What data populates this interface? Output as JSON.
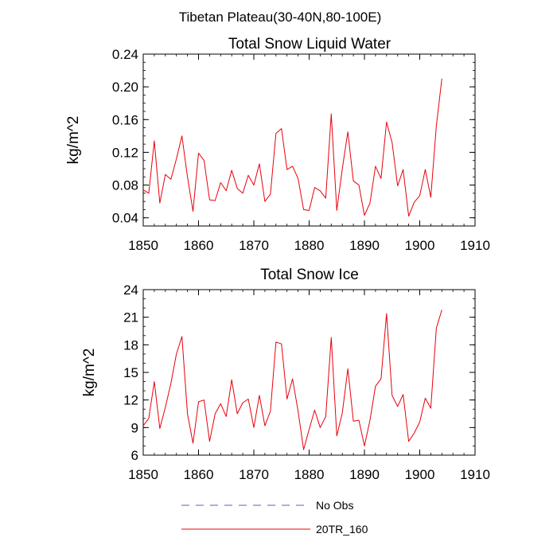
{
  "figure": {
    "suptitle": "Tibetan Plateau(30-40N,80-100E)"
  },
  "legend": {
    "entries": [
      {
        "label": "No Obs",
        "color": "#5a5ad6",
        "style": "dashed"
      },
      {
        "label": "20TR_160",
        "color": "#e8000b",
        "style": "solid"
      }
    ]
  },
  "chart_data": [
    {
      "type": "line",
      "title": "Total Snow Liquid Water",
      "xlabel": "",
      "ylabel": "kg/m^2",
      "xlim": [
        1850,
        1910
      ],
      "ylim": [
        0.03,
        0.24
      ],
      "xticks": [
        "1850",
        "1860",
        "1870",
        "1880",
        "1890",
        "1900",
        "1910"
      ],
      "yticks": [
        "0.04",
        "0.08",
        "0.12",
        "0.16",
        "0.20",
        "0.24"
      ],
      "x_start": 1850,
      "series": [
        {
          "name": "20TR_160",
          "color": "#e8000b",
          "values": [
            0.074,
            0.07,
            0.134,
            0.058,
            0.093,
            0.087,
            0.112,
            0.14,
            0.09,
            0.048,
            0.119,
            0.11,
            0.062,
            0.061,
            0.083,
            0.073,
            0.098,
            0.076,
            0.07,
            0.092,
            0.08,
            0.106,
            0.06,
            0.069,
            0.143,
            0.149,
            0.099,
            0.103,
            0.088,
            0.05,
            0.049,
            0.077,
            0.073,
            0.064,
            0.167,
            0.049,
            0.1,
            0.145,
            0.085,
            0.08,
            0.043,
            0.058,
            0.103,
            0.088,
            0.157,
            0.132,
            0.079,
            0.099,
            0.042,
            0.059,
            0.067,
            0.099,
            0.065,
            0.152,
            0.21
          ]
        }
      ]
    },
    {
      "type": "line",
      "title": "Total Snow Ice",
      "xlabel": "",
      "ylabel": "kg/m^2",
      "xlim": [
        1850,
        1910
      ],
      "ylim": [
        6,
        24
      ],
      "xticks": [
        "1850",
        "1860",
        "1870",
        "1880",
        "1890",
        "1900",
        "1910"
      ],
      "yticks": [
        "6",
        "9",
        "12",
        "15",
        "18",
        "21",
        "24"
      ],
      "x_start": 1850,
      "series": [
        {
          "name": "20TR_160",
          "color": "#e8000b",
          "values": [
            9.2,
            10.0,
            14.0,
            8.9,
            11.2,
            13.8,
            17.0,
            18.9,
            10.5,
            7.3,
            11.8,
            12.0,
            7.5,
            10.5,
            11.6,
            10.2,
            14.2,
            10.5,
            11.7,
            12.1,
            9.0,
            12.5,
            9.2,
            10.8,
            18.3,
            18.1,
            12.1,
            14.3,
            10.8,
            6.6,
            8.8,
            10.9,
            9.0,
            10.2,
            18.8,
            8.1,
            10.6,
            15.4,
            9.7,
            9.8,
            7.0,
            9.8,
            13.5,
            14.3,
            21.4,
            12.5,
            11.3,
            12.6,
            7.5,
            8.4,
            9.6,
            12.2,
            11.1,
            19.8,
            21.8
          ]
        }
      ]
    }
  ]
}
